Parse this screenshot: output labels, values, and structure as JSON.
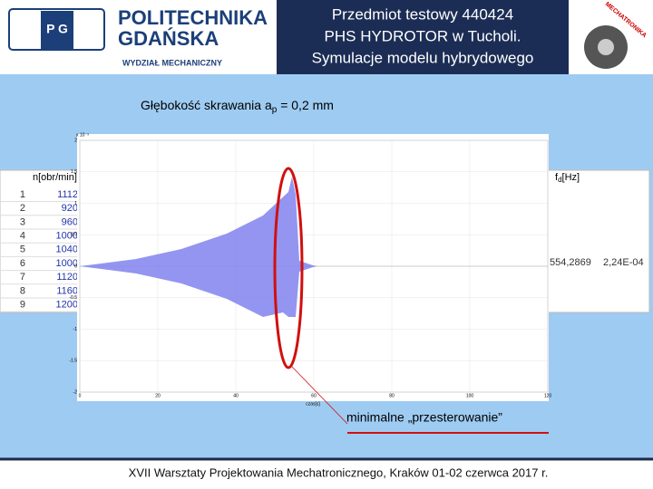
{
  "header": {
    "university": [
      "POLITECHNIKA",
      "GDAŃSKA"
    ],
    "faculty": "WYDZIAŁ MECHANICZNY",
    "title": [
      "Przedmiot testowy 440424",
      "PHS HYDROTOR w Tucholi.",
      "Symulacje modelu hybrydowego"
    ],
    "logo_text": "MECHATRONIKA"
  },
  "slide": {
    "label": {
      "text": "Głębokość skrawania a",
      "sub": "p",
      "rest": " = 0,2 mm"
    },
    "table": {
      "header_left": "n[obr/min]",
      "header_right": {
        "text": "f",
        "sub": "d",
        "rest": "[Hz]"
      },
      "rows": [
        [
          "1",
          "1112"
        ],
        [
          "2",
          "920"
        ],
        [
          "3",
          "960"
        ],
        [
          "4",
          "1000"
        ],
        [
          "5",
          "1040"
        ],
        [
          "6",
          "1000"
        ],
        [
          "7",
          "1120"
        ],
        [
          "8",
          "1160"
        ],
        [
          "9",
          "1200"
        ]
      ],
      "row_6_right": [
        "554,2869",
        "2,24E-04"
      ]
    },
    "plot": {
      "y_exponent": "x 10⁻³",
      "yticks": [
        "2",
        "1.5",
        "1",
        "0.5",
        "0",
        "-0.5",
        "-1",
        "-1.5",
        "-2"
      ],
      "xticks": [
        "0",
        "20",
        "40",
        "60",
        "80",
        "100",
        "120"
      ],
      "x_label": "czas[s]"
    },
    "annotation": "minimalne „przesterowanie”"
  },
  "footer": "XVII Warsztaty Projektowania Mechatronicznego, Kraków 01-02 czerwca 2017 r."
}
